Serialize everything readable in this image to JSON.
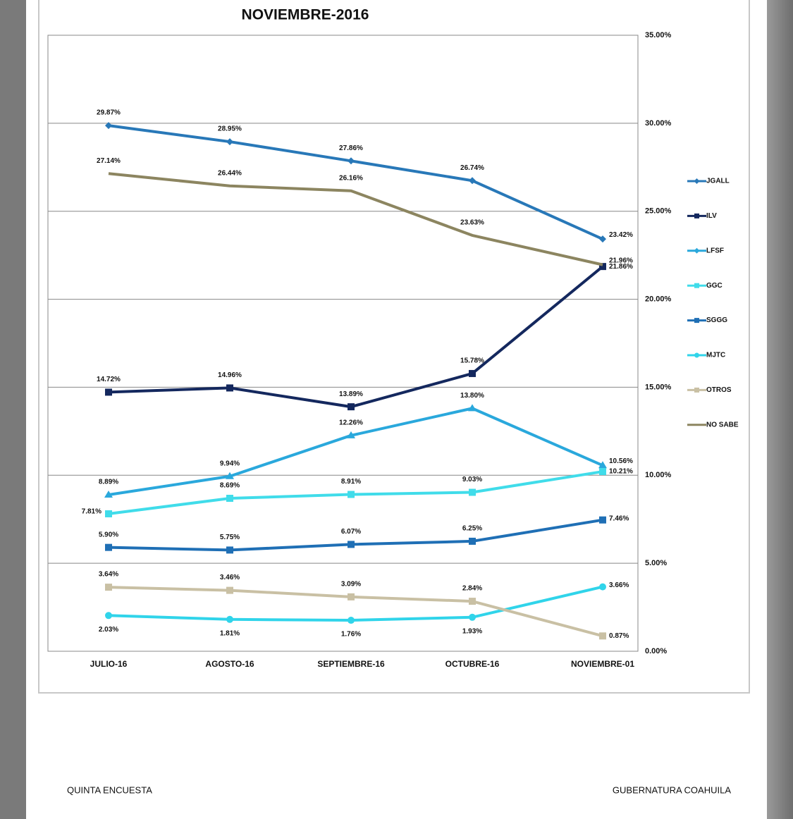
{
  "chart_data": {
    "type": "line",
    "title": "NOVIEMBRE-2016",
    "categories": [
      "JULIO-16",
      "AGOSTO-16",
      "SEPTIEMBRE-16",
      "OCTUBRE-16",
      "NOVIEMBRE-01"
    ],
    "ylim": [
      0,
      35
    ],
    "yticks": [
      {
        "value": 0,
        "label": "0.00%"
      },
      {
        "value": 5,
        "label": "5.00%"
      },
      {
        "value": 10,
        "label": "10.00%"
      },
      {
        "value": 15,
        "label": "15.00%"
      },
      {
        "value": 20,
        "label": "20.00%"
      },
      {
        "value": 25,
        "label": "25.00%"
      },
      {
        "value": 30,
        "label": "30.00%"
      },
      {
        "value": 35,
        "label": "35.00%"
      }
    ],
    "grid": true,
    "legend": "right",
    "series": [
      {
        "name": "JGALL",
        "color": "#2878b8",
        "marker": "diamond",
        "values": [
          29.87,
          28.95,
          27.86,
          26.74,
          23.42
        ],
        "value_labels": [
          "29.87%",
          "28.95%",
          "27.86%",
          "26.74%",
          "23.42%"
        ]
      },
      {
        "name": "ILV",
        "color": "#14285e",
        "marker": "square",
        "values": [
          14.72,
          14.96,
          13.89,
          15.78,
          21.86
        ],
        "value_labels": [
          "14.72%",
          "14.96%",
          "13.89%",
          "15.78%",
          "21.86%"
        ]
      },
      {
        "name": "LFSF",
        "color": "#2aa8dc",
        "marker": "triangle",
        "values": [
          8.89,
          9.94,
          12.26,
          13.8,
          10.56
        ],
        "value_labels": [
          "8.89%",
          "9.94%",
          "12.26%",
          "13.80%",
          "10.56%"
        ]
      },
      {
        "name": "GGC",
        "color": "#40dcea",
        "marker": "square",
        "values": [
          7.81,
          8.69,
          8.91,
          9.03,
          10.21
        ],
        "value_labels": [
          "7.81%",
          "8.69%",
          "8.91%",
          "9.03%",
          "10.21%"
        ]
      },
      {
        "name": "SGGG",
        "color": "#1f6fb5",
        "marker": "square",
        "values": [
          5.9,
          5.75,
          6.07,
          6.25,
          7.46
        ],
        "value_labels": [
          "5.90%",
          "5.75%",
          "6.07%",
          "6.25%",
          "7.46%"
        ]
      },
      {
        "name": "MJTC",
        "color": "#30d4ea",
        "marker": "circle",
        "values": [
          2.03,
          1.81,
          1.76,
          1.93,
          3.66
        ],
        "value_labels": [
          "2.03%",
          "1.81%",
          "1.76%",
          "1.93%",
          "3.66%"
        ]
      },
      {
        "name": "OTROS",
        "color": "#c9c0a4",
        "marker": "square",
        "values": [
          3.64,
          3.46,
          3.09,
          2.84,
          0.87
        ],
        "value_labels": [
          "3.64%",
          "3.46%",
          "3.09%",
          "2.84%",
          "0.87%"
        ]
      },
      {
        "name": "NO SABE",
        "color": "#8c8560",
        "marker": "none",
        "values": [
          27.14,
          26.44,
          26.16,
          23.63,
          21.96
        ],
        "value_labels": [
          "27.14%",
          "26.44%",
          "26.16%",
          "23.63%",
          "21.96%"
        ]
      }
    ]
  },
  "footer_left": "QUINTA ENCUESTA",
  "footer_right": "GUBERNATURA COAHUILA"
}
